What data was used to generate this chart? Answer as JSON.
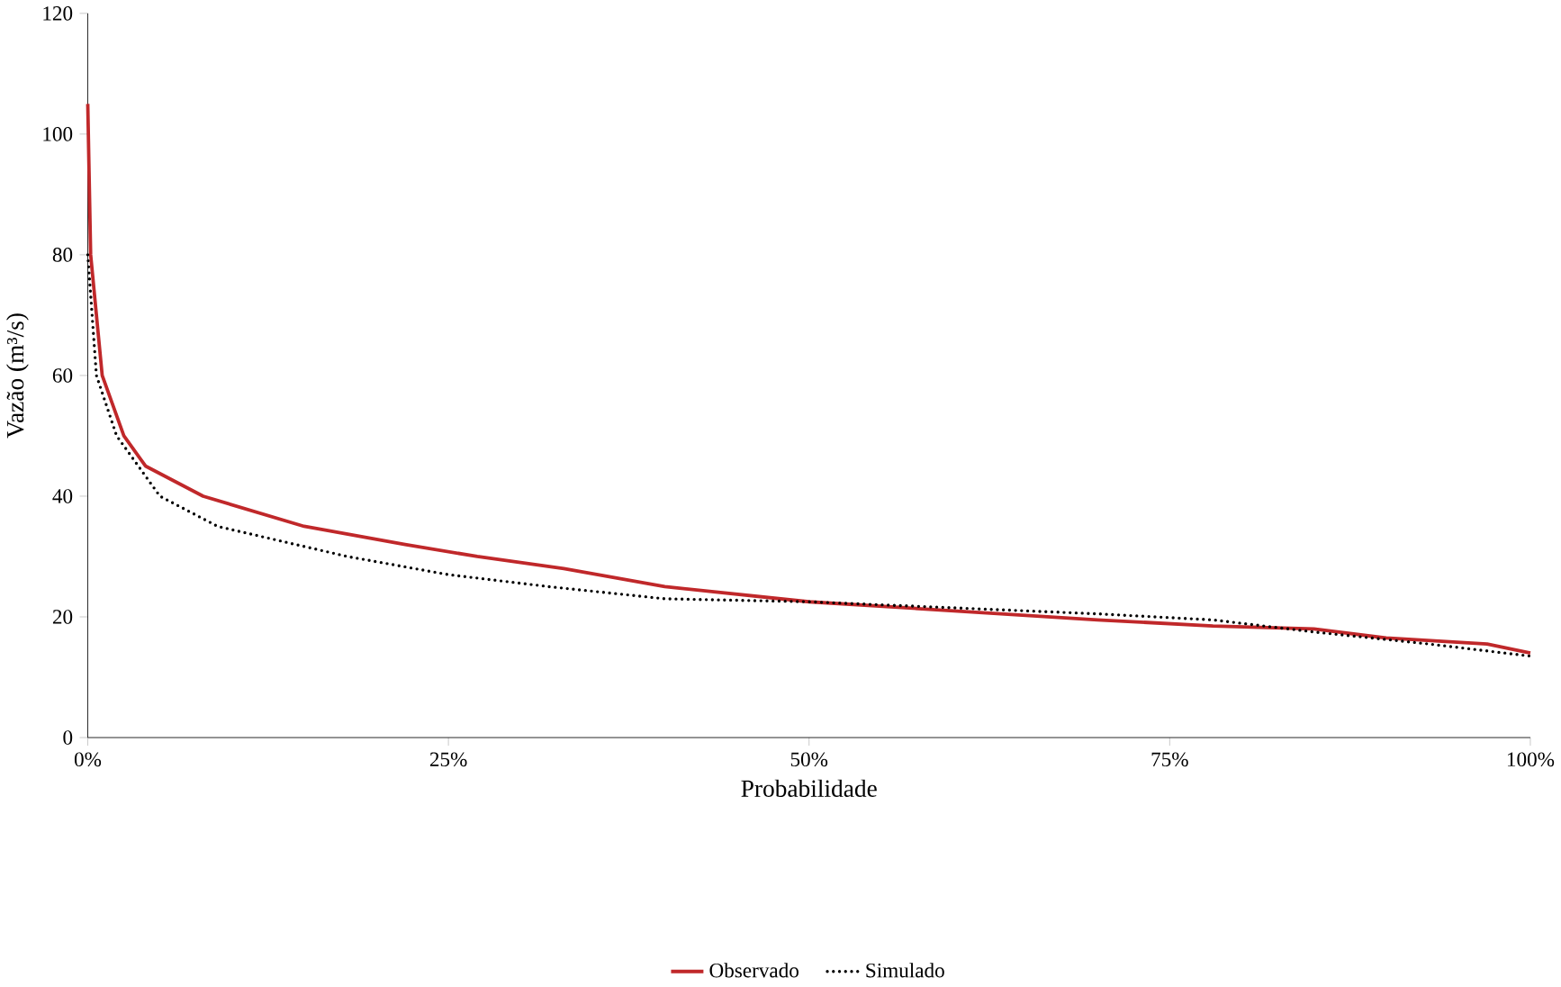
{
  "chart_data": {
    "type": "line",
    "xlabel": "Probabilidade",
    "ylabel": "Vazão (m³/s)",
    "xlim": [
      0,
      100
    ],
    "ylim": [
      0,
      120
    ],
    "xticks": [
      {
        "value": 0,
        "label": "0%"
      },
      {
        "value": 25,
        "label": "25%"
      },
      {
        "value": 50,
        "label": "50%"
      },
      {
        "value": 75,
        "label": "75%"
      },
      {
        "value": 100,
        "label": "100%"
      }
    ],
    "yticks": [
      0,
      20,
      40,
      60,
      80,
      100,
      120
    ],
    "grid": false,
    "legend": "bottom",
    "marker": "none",
    "series": [
      {
        "name": "Observado",
        "color": "#c0282a",
        "line_style": "solid",
        "x": [
          0,
          0.2,
          1,
          2.5,
          4,
          8,
          15,
          22,
          27,
          33,
          40,
          50,
          60,
          70,
          78,
          85,
          90,
          97,
          100
        ],
        "values": [
          105,
          80,
          60,
          50,
          45,
          40,
          35,
          32,
          30,
          28,
          25,
          22.5,
          21,
          19.5,
          18.5,
          18,
          16.5,
          15.5,
          14
        ]
      },
      {
        "name": "Simulado",
        "color": "#000000",
        "line_style": "dotted",
        "x": [
          0,
          0.6,
          2,
          5,
          9,
          18,
          25,
          32,
          40,
          50,
          60,
          70,
          78,
          85,
          93,
          100
        ],
        "values": [
          80,
          60,
          50,
          40,
          35,
          30,
          27,
          25,
          23,
          22.5,
          21.5,
          20.5,
          19.5,
          17.5,
          15.5,
          13.5
        ]
      }
    ]
  }
}
